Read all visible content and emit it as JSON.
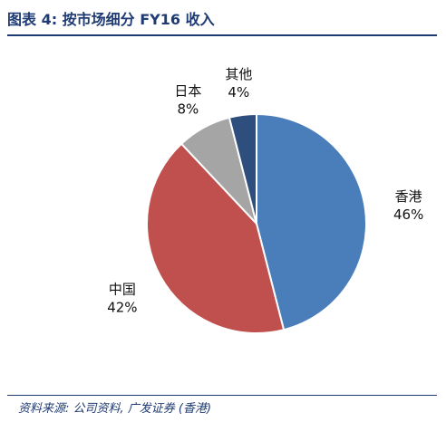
{
  "header": {
    "title": "图表 4: 按市场细分 FY16 收入"
  },
  "chart_data": {
    "type": "pie",
    "title": "",
    "categories": [
      "香港",
      "中国",
      "日本",
      "其他"
    ],
    "values": [
      46,
      42,
      8,
      4
    ],
    "value_labels": [
      "46%",
      "42%",
      "8%",
      "4%"
    ],
    "colors": [
      "#4a7ebb",
      "#c0504d",
      "#a5a5a5",
      "#2e4e7e"
    ],
    "start": "12 o'clock",
    "direction": "clockwise",
    "legend": "none"
  },
  "footer": {
    "source": "资料来源: 公司资料, 广发证券 (香港)"
  }
}
